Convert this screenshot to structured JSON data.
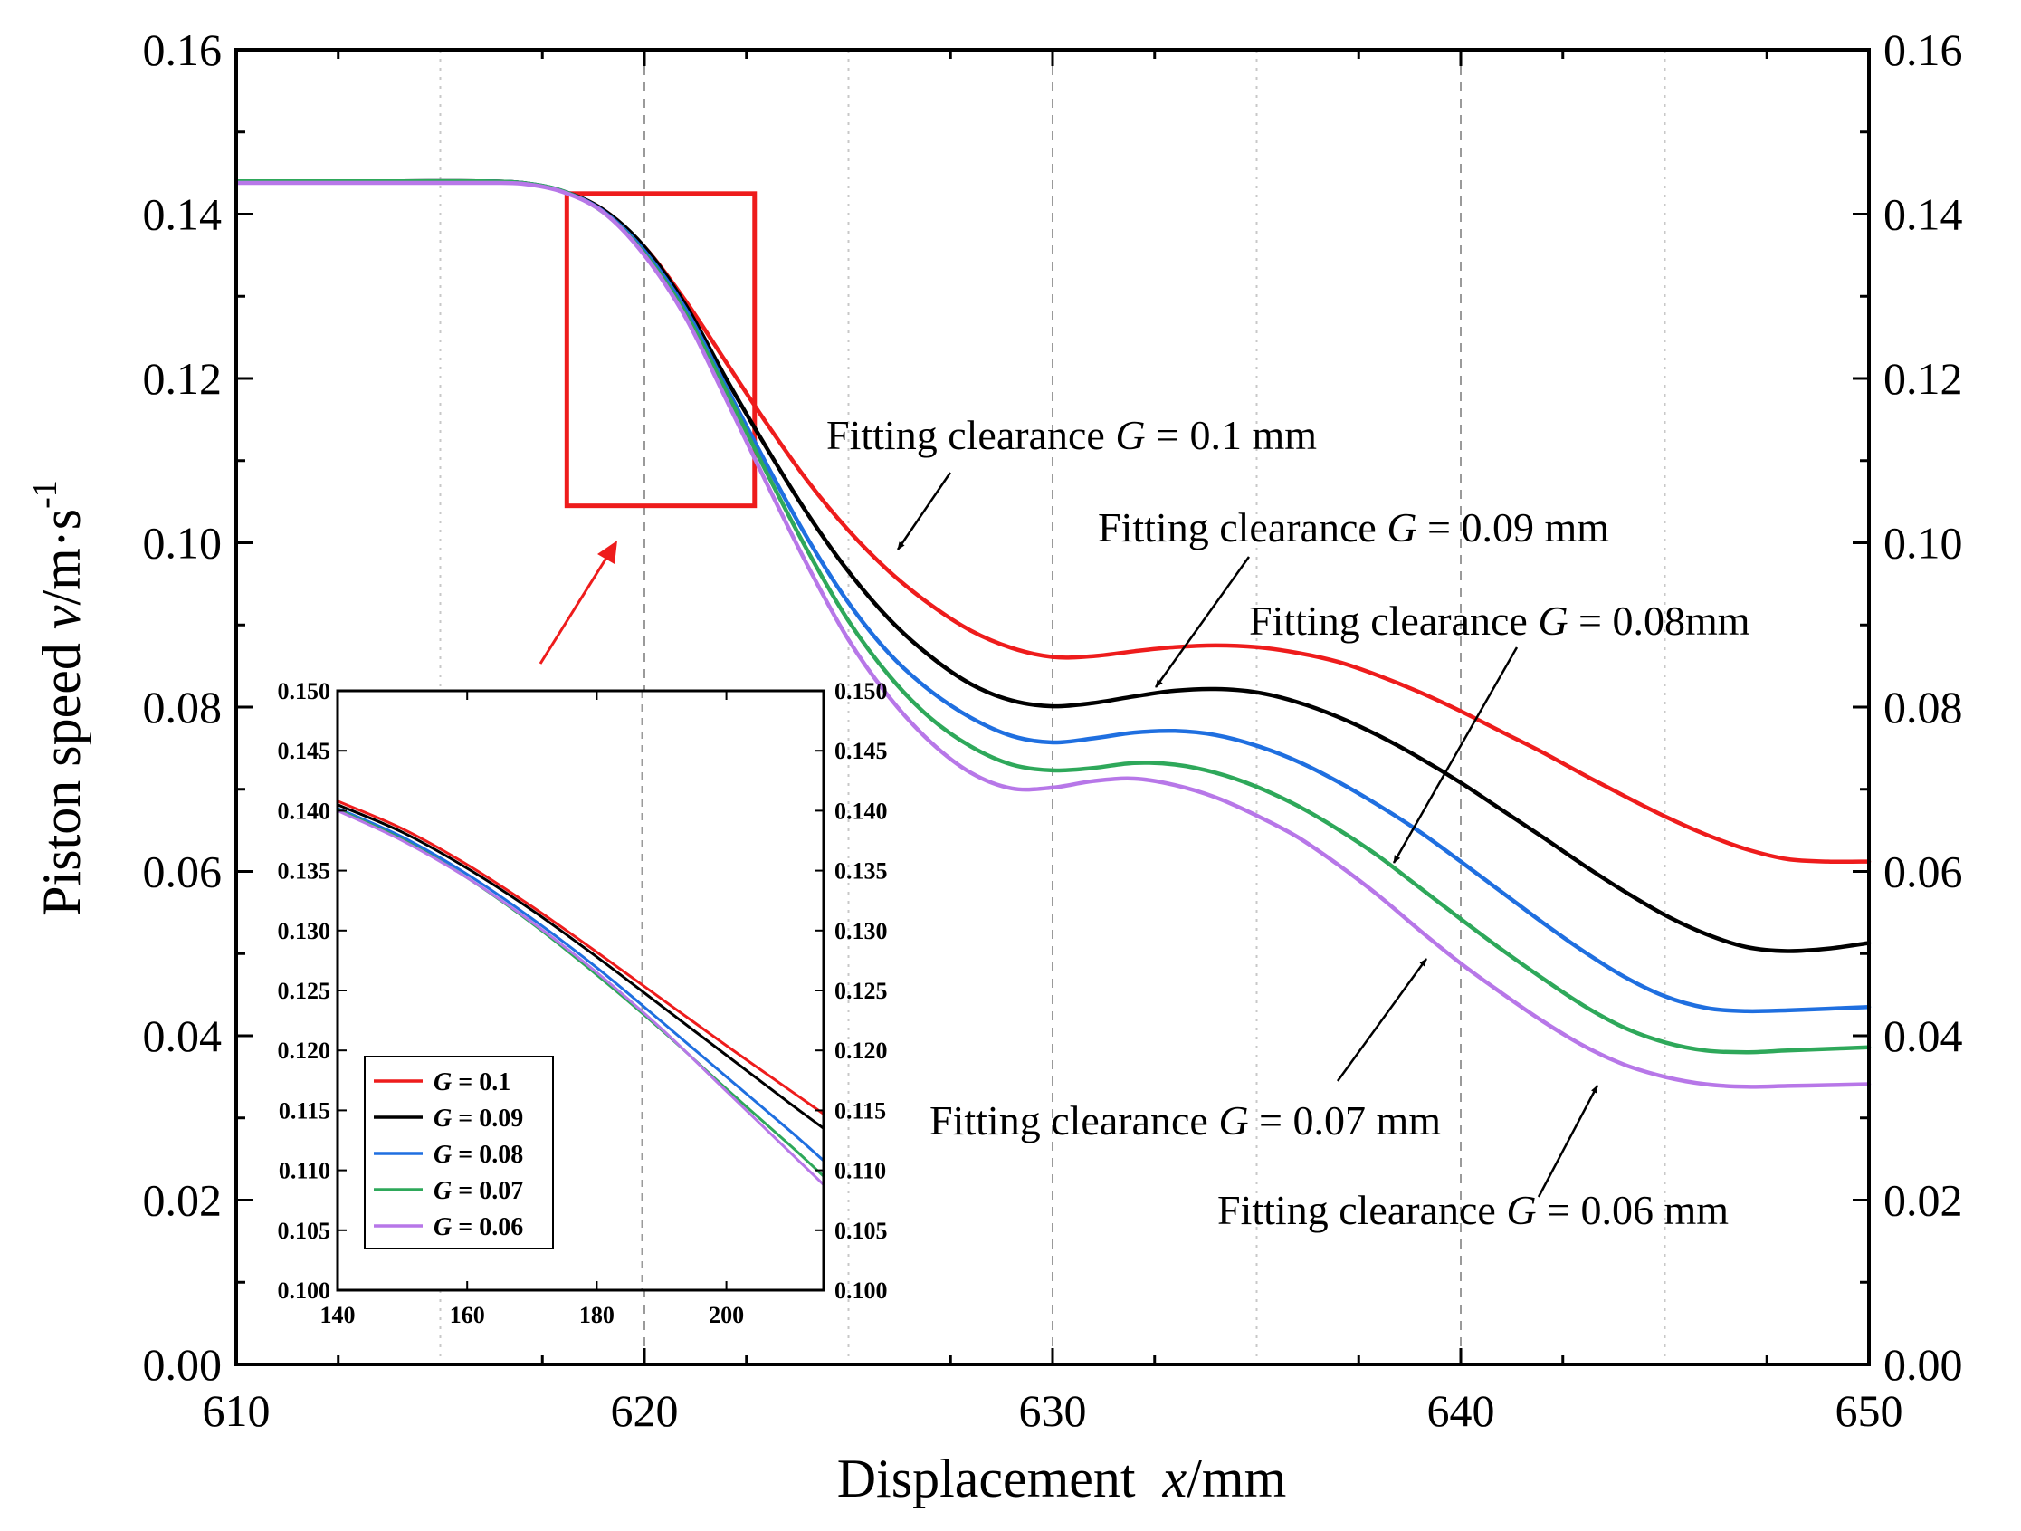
{
  "chart_data": [
    {
      "name": "main",
      "type": "line",
      "xlabel_prefix": "Displacement",
      "xlabel_var": "x",
      "xlabel_unit": "/mm",
      "ylabel_prefix": "Piston speed",
      "ylabel_var": "v",
      "ylabel_unit": "/m·s",
      "ylabel_exp": "-1",
      "xlim": [
        610,
        650
      ],
      "ylim": [
        0,
        0.16
      ],
      "x_ticks": [
        "610",
        "620",
        "630",
        "640",
        "650"
      ],
      "x_tick_values": [
        610,
        620,
        630,
        640,
        650
      ],
      "y_ticks": [
        "0.00",
        "0.02",
        "0.04",
        "0.06",
        "0.08",
        "0.10",
        "0.12",
        "0.14",
        "0.16"
      ],
      "y_tick_values": [
        0,
        0.02,
        0.04,
        0.06,
        0.08,
        0.1,
        0.12,
        0.14,
        0.16
      ],
      "right_axis_mirrors_left": true,
      "dashed_gridlines_x": [
        620,
        630,
        640
      ],
      "dotted_gridlines_x": [
        615,
        625,
        635,
        645
      ],
      "zoom_box": {
        "x0": 618.1,
        "x1": 622.7,
        "y0": 0.1045,
        "y1": 0.1425,
        "color": "#ee1c1c"
      },
      "series": [
        {
          "name": "G = 0.1",
          "color": "#ee1c1c",
          "x": [
            610,
            612,
            614,
            616,
            617,
            618,
            619,
            620,
            621,
            622,
            623,
            624,
            625,
            626,
            627,
            628,
            629,
            630,
            631,
            632,
            633,
            634,
            635,
            636,
            637,
            638,
            639,
            640,
            641,
            642,
            643,
            644,
            645,
            646,
            647,
            648,
            649,
            650
          ],
          "y": [
            0.144,
            0.144,
            0.144,
            0.144,
            0.1438,
            0.1428,
            0.1405,
            0.136,
            0.1295,
            0.122,
            0.1145,
            0.1075,
            0.1015,
            0.0965,
            0.0925,
            0.0893,
            0.0872,
            0.0861,
            0.0862,
            0.0868,
            0.0873,
            0.0875,
            0.0873,
            0.0866,
            0.0855,
            0.0838,
            0.0818,
            0.0795,
            0.077,
            0.0745,
            0.0718,
            0.0692,
            0.0667,
            0.0645,
            0.0627,
            0.0615,
            0.0612,
            0.0612
          ]
        },
        {
          "name": "G = 0.09",
          "color": "#000000",
          "x": [
            610,
            612,
            614,
            616,
            617,
            618,
            619,
            620,
            621,
            622,
            623,
            624,
            625,
            626,
            627,
            628,
            629,
            630,
            631,
            632,
            633,
            634,
            635,
            636,
            637,
            638,
            639,
            640,
            641,
            642,
            643,
            644,
            645,
            646,
            647,
            648,
            649,
            650
          ],
          "y": [
            0.144,
            0.144,
            0.144,
            0.144,
            0.1438,
            0.1428,
            0.1405,
            0.136,
            0.129,
            0.12,
            0.1115,
            0.1035,
            0.0965,
            0.0907,
            0.0862,
            0.0828,
            0.0808,
            0.0801,
            0.0805,
            0.0813,
            0.082,
            0.0822,
            0.0818,
            0.0806,
            0.0788,
            0.0765,
            0.0738,
            0.0708,
            0.0675,
            0.0642,
            0.0608,
            0.0576,
            0.0547,
            0.0524,
            0.0508,
            0.0503,
            0.0506,
            0.0513
          ]
        },
        {
          "name": "G = 0.08",
          "color": "#1f6fe0",
          "x": [
            610,
            612,
            614,
            616,
            617,
            618,
            619,
            620,
            621,
            622,
            623,
            624,
            625,
            626,
            627,
            628,
            629,
            630,
            631,
            632,
            633,
            634,
            635,
            636,
            637,
            638,
            639,
            640,
            641,
            642,
            643,
            644,
            645,
            646,
            647,
            648,
            649,
            650
          ],
          "y": [
            0.144,
            0.144,
            0.144,
            0.144,
            0.1438,
            0.1428,
            0.1403,
            0.1355,
            0.1285,
            0.119,
            0.1095,
            0.1005,
            0.0927,
            0.0865,
            0.082,
            0.0787,
            0.0765,
            0.0757,
            0.0762,
            0.0769,
            0.0771,
            0.0766,
            0.0753,
            0.0734,
            0.0709,
            0.068,
            0.0648,
            0.0612,
            0.0575,
            0.0538,
            0.0503,
            0.0472,
            0.0448,
            0.0434,
            0.043,
            0.0431,
            0.0433,
            0.0435
          ]
        },
        {
          "name": "G = 0.07",
          "color": "#2ea85a",
          "x": [
            610,
            612,
            614,
            616,
            617,
            618,
            619,
            620,
            621,
            622,
            623,
            624,
            625,
            626,
            627,
            628,
            629,
            630,
            631,
            632,
            633,
            634,
            635,
            636,
            637,
            638,
            639,
            640,
            641,
            642,
            643,
            644,
            645,
            646,
            647,
            648,
            649,
            650
          ],
          "y": [
            0.144,
            0.144,
            0.144,
            0.144,
            0.1438,
            0.1428,
            0.1402,
            0.1352,
            0.128,
            0.1185,
            0.1085,
            0.099,
            0.0905,
            0.0838,
            0.0787,
            0.0752,
            0.073,
            0.0723,
            0.0726,
            0.0732,
            0.073,
            0.072,
            0.0703,
            0.068,
            0.0651,
            0.0618,
            0.058,
            0.0542,
            0.0505,
            0.047,
            0.0437,
            0.041,
            0.0392,
            0.0382,
            0.038,
            0.0382,
            0.0384,
            0.0386
          ]
        },
        {
          "name": "G = 0.06",
          "color": "#b777e8",
          "x": [
            610,
            612,
            614,
            616,
            617,
            618,
            619,
            620,
            621,
            622,
            623,
            624,
            625,
            626,
            627,
            628,
            629,
            630,
            631,
            632,
            633,
            634,
            635,
            636,
            637,
            638,
            639,
            640,
            641,
            642,
            643,
            644,
            645,
            646,
            647,
            648,
            649,
            650
          ],
          "y": [
            0.1438,
            0.1438,
            0.1438,
            0.1438,
            0.1437,
            0.1427,
            0.1402,
            0.135,
            0.1275,
            0.1175,
            0.1072,
            0.0972,
            0.0882,
            0.0812,
            0.0758,
            0.072,
            0.0701,
            0.0702,
            0.071,
            0.0713,
            0.0705,
            0.069,
            0.0668,
            0.0642,
            0.0608,
            0.057,
            0.0528,
            0.0488,
            0.0452,
            0.0418,
            0.0388,
            0.0365,
            0.035,
            0.0341,
            0.0338,
            0.0339,
            0.034,
            0.0341
          ]
        }
      ],
      "annotations": [
        {
          "prefix": "Fitting clearance ",
          "var": "G",
          "suffix": " = 0.1 mm",
          "series": "G = 0.1"
        },
        {
          "prefix": "Fitting clearance ",
          "var": "G",
          "suffix": " = 0.09 mm",
          "series": "G = 0.09"
        },
        {
          "prefix": "Fitting clearance ",
          "var": "G",
          "suffix": " = 0.08mm",
          "series": "G = 0.08"
        },
        {
          "prefix": "Fitting clearance ",
          "var": "G",
          "suffix": " = 0.07 mm",
          "series": "G = 0.07"
        },
        {
          "prefix": "Fitting clearance ",
          "var": "G",
          "suffix": " = 0.06 mm",
          "series": "G = 0.06"
        }
      ]
    },
    {
      "name": "inset",
      "type": "line",
      "xlim": [
        140,
        215
      ],
      "ylim": [
        0.1,
        0.15
      ],
      "x_ticks": [
        "140",
        "160",
        "180",
        "200"
      ],
      "x_tick_values": [
        140,
        160,
        180,
        200
      ],
      "y_ticks": [
        "0.100",
        "0.105",
        "0.110",
        "0.115",
        "0.120",
        "0.125",
        "0.130",
        "0.135",
        "0.140",
        "0.145",
        "0.150"
      ],
      "y_tick_values": [
        0.1,
        0.105,
        0.11,
        0.115,
        0.12,
        0.125,
        0.13,
        0.135,
        0.14,
        0.145,
        0.15
      ],
      "right_axis_mirrors_left": true,
      "dashed_gridlines_x": [
        187
      ],
      "legend_position": "bottom-left",
      "series": [
        {
          "name": "G = 0.1",
          "legend_var": "G",
          "legend_value": " = 0.1",
          "color": "#ee1c1c",
          "x": [
            140,
            150,
            160,
            170,
            180,
            190,
            200,
            210,
            215
          ],
          "y": [
            0.1408,
            0.1385,
            0.1355,
            0.132,
            0.1282,
            0.1243,
            0.1204,
            0.1166,
            0.1147
          ]
        },
        {
          "name": "G = 0.09",
          "legend_var": "G",
          "legend_value": " = 0.09",
          "color": "#000000",
          "x": [
            140,
            150,
            160,
            170,
            180,
            190,
            200,
            210,
            215
          ],
          "y": [
            0.1405,
            0.1382,
            0.1352,
            0.1317,
            0.1278,
            0.1237,
            0.1196,
            0.1155,
            0.1135
          ]
        },
        {
          "name": "G = 0.08",
          "legend_var": "G",
          "legend_value": " = 0.08",
          "color": "#1f6fe0",
          "x": [
            140,
            150,
            160,
            170,
            180,
            190,
            200,
            210,
            215
          ],
          "y": [
            0.1402,
            0.1378,
            0.1347,
            0.131,
            0.1269,
            0.1224,
            0.1178,
            0.1132,
            0.1108
          ]
        },
        {
          "name": "G = 0.07",
          "legend_var": "G",
          "legend_value": " = 0.07",
          "color": "#2ea85a",
          "x": [
            140,
            150,
            160,
            170,
            180,
            190,
            200,
            210,
            215
          ],
          "y": [
            0.1401,
            0.1376,
            0.1344,
            0.1306,
            0.1263,
            0.1217,
            0.1168,
            0.112,
            0.1095
          ]
        },
        {
          "name": "G = 0.06",
          "legend_var": "G",
          "legend_value": " = 0.06",
          "color": "#b777e8",
          "x": [
            140,
            150,
            160,
            170,
            180,
            190,
            200,
            210,
            215
          ],
          "y": [
            0.14,
            0.1375,
            0.1344,
            0.1307,
            0.1265,
            0.1218,
            0.1166,
            0.1114,
            0.1088
          ]
        }
      ]
    }
  ]
}
